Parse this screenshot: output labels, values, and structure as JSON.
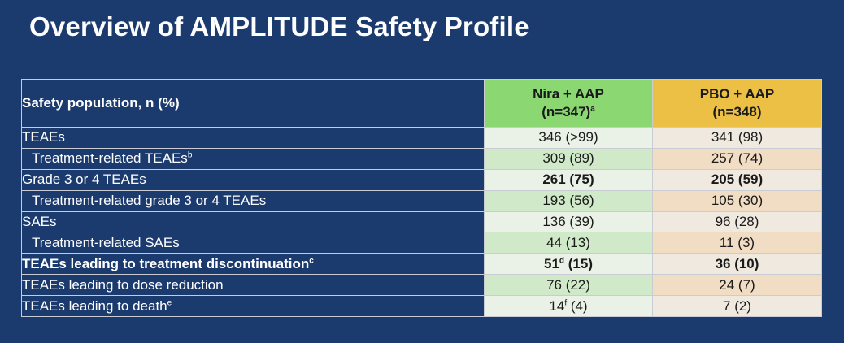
{
  "title": "Overview of AMPLITUDE Safety Profile",
  "table": {
    "header": {
      "label": "Safety population, n (%)",
      "nira_name": "Nira + AAP",
      "nira_n": "(n=347)",
      "nira_sup": "a",
      "pbo_name": "PBO + AAP",
      "pbo_n": "(n=348)"
    },
    "rows": [
      {
        "label": "TEAEs",
        "label_sup": "",
        "nira": "346 (>99)",
        "nira_sup": "",
        "nira_rest": "",
        "pbo": "341 (98)"
      },
      {
        "label": "Treatment-related TEAEs",
        "label_sup": "b",
        "nira": "309 (89)",
        "nira_sup": "",
        "nira_rest": "",
        "pbo": "257 (74)"
      },
      {
        "label": "Grade 3 or 4 TEAEs",
        "label_sup": "",
        "nira": "261 (75)",
        "nira_sup": "",
        "nira_rest": "",
        "pbo": "205 (59)"
      },
      {
        "label": "Treatment-related grade 3 or 4 TEAEs",
        "label_sup": "",
        "nira": "193 (56)",
        "nira_sup": "",
        "nira_rest": "",
        "pbo": "105 (30)"
      },
      {
        "label": "SAEs",
        "label_sup": "",
        "nira": "136 (39)",
        "nira_sup": "",
        "nira_rest": "",
        "pbo": "96 (28)"
      },
      {
        "label": "Treatment-related SAEs",
        "label_sup": "",
        "nira": "44 (13)",
        "nira_sup": "",
        "nira_rest": "",
        "pbo": "11 (3)"
      },
      {
        "label": "TEAEs leading to treatment discontinuation",
        "label_sup": "c",
        "nira": "51",
        "nira_sup": "d",
        "nira_rest": " (15)",
        "pbo": "36 (10)"
      },
      {
        "label": "TEAEs leading to dose reduction",
        "label_sup": "",
        "nira": "76 (22)",
        "nira_sup": "",
        "nira_rest": "",
        "pbo": "24 (7)"
      },
      {
        "label": "TEAEs leading to death",
        "label_sup": "e",
        "nira": "14",
        "nira_sup": "f",
        "nira_rest": " (4)",
        "pbo": "7 (2)"
      }
    ]
  }
}
